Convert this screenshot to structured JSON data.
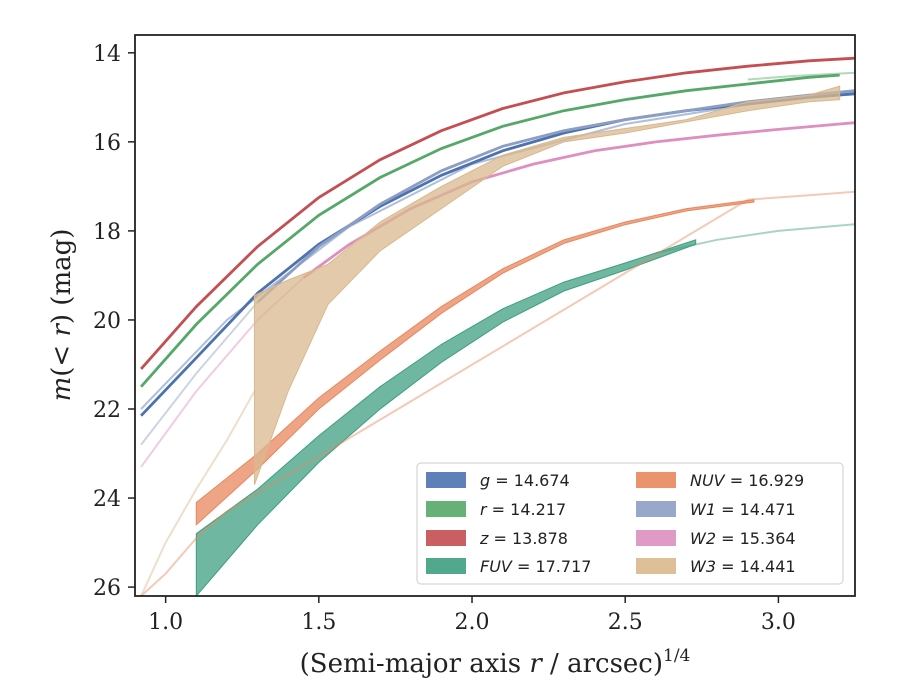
{
  "chart_data": {
    "type": "line",
    "xlabel": "(Semi-major axis r / arcsec)^{1/4}",
    "xlabel_parts": {
      "pre": "(Semi-major axis ",
      "var": "r",
      "post": " / arcsec)",
      "sup": "1/4"
    },
    "ylabel": "m(< r) (mag)",
    "ylabel_parts": {
      "m": "m",
      "open": "(",
      "lt": "< ",
      "r": "r",
      "close": ")",
      "unit": " (mag)"
    },
    "xlim": [
      0.9,
      3.25
    ],
    "ylim": [
      26.2,
      13.6
    ],
    "y_inverted": true,
    "xticks": [
      "1.0",
      "1.5",
      "2.0",
      "2.5",
      "3.0"
    ],
    "xtick_values": [
      1.0,
      1.5,
      2.0,
      2.5,
      3.0
    ],
    "yticks": [
      "14",
      "16",
      "18",
      "20",
      "22",
      "24",
      "26"
    ],
    "ytick_values": [
      14,
      16,
      18,
      20,
      22,
      24,
      26
    ],
    "grid": false,
    "legend_placement": "lower-right",
    "series": [
      {
        "key": "g",
        "name": "g = 14.674",
        "label_var": "g",
        "label_val": " = 14.674",
        "color": "#4c72b0",
        "faint_x": [
          0.92,
          1.2,
          1.6,
          2.0,
          2.5,
          3.0,
          3.25
        ],
        "faint_y": [
          22.0,
          20.0,
          17.9,
          16.5,
          15.6,
          15.05,
          14.9
        ],
        "solid_x": [
          0.92,
          1.1,
          1.3,
          1.5,
          1.7,
          1.9,
          2.1,
          2.3,
          2.5,
          2.7,
          2.9,
          3.1,
          3.25
        ],
        "solid_y": [
          22.15,
          20.85,
          19.4,
          18.3,
          17.45,
          16.75,
          16.2,
          15.8,
          15.5,
          15.3,
          15.15,
          15.0,
          14.92
        ],
        "band": []
      },
      {
        "key": "r",
        "name": "r = 14.217",
        "label_var": "r",
        "label_val": " = 14.217",
        "color": "#55a868",
        "faint_x": [
          2.9,
          3.05,
          3.25
        ],
        "faint_y": [
          14.6,
          14.52,
          14.45
        ],
        "solid_x": [
          0.92,
          1.1,
          1.3,
          1.5,
          1.7,
          1.9,
          2.1,
          2.3,
          2.5,
          2.7,
          2.9,
          3.1,
          3.2
        ],
        "solid_y": [
          21.5,
          20.1,
          18.75,
          17.65,
          16.8,
          16.15,
          15.65,
          15.3,
          15.05,
          14.85,
          14.7,
          14.55,
          14.5
        ],
        "band": []
      },
      {
        "key": "z",
        "name": "z = 13.878",
        "label_var": "z",
        "label_val": " = 13.878",
        "color": "#c44e52",
        "faint_x": [],
        "faint_y": [],
        "solid_x": [
          0.92,
          1.1,
          1.3,
          1.5,
          1.7,
          1.9,
          2.1,
          2.3,
          2.5,
          2.7,
          2.9,
          3.1,
          3.25
        ],
        "solid_y": [
          21.1,
          19.7,
          18.35,
          17.25,
          16.4,
          15.75,
          15.25,
          14.9,
          14.65,
          14.45,
          14.3,
          14.18,
          14.12
        ],
        "band": []
      },
      {
        "key": "FUV",
        "name": "FUV = 17.717",
        "label_var": "FUV",
        "label_val": " = 17.717",
        "color": "#3f9f80",
        "faint_x": [
          2.6,
          2.8,
          3.0,
          3.25
        ],
        "faint_y": [
          18.5,
          18.2,
          18.0,
          17.85
        ],
        "solid_x": [],
        "solid_y": [],
        "band_x": [
          1.1,
          1.3,
          1.5,
          1.7,
          1.9,
          2.1,
          2.3,
          2.5,
          2.73
        ],
        "band_lo": [
          24.8,
          23.8,
          22.6,
          21.5,
          20.55,
          19.75,
          19.15,
          18.72,
          18.2
        ],
        "band_hi": [
          26.2,
          24.6,
          23.2,
          22.0,
          20.95,
          20.05,
          19.35,
          18.88,
          18.3
        ]
      },
      {
        "key": "NUV",
        "name": "NUV = 16.929",
        "label_var": "NUV",
        "label_val": " = 16.929",
        "color": "#e8875d",
        "faint_x": [
          0.92,
          1.0,
          1.1,
          1.2,
          2.9,
          3.1,
          3.25
        ],
        "faint_y": [
          26.2,
          25.7,
          24.9,
          24.3,
          17.3,
          17.2,
          17.12
        ],
        "solid_x": [],
        "solid_y": [],
        "band_x": [
          1.1,
          1.3,
          1.5,
          1.7,
          1.9,
          2.1,
          2.3,
          2.5,
          2.7,
          2.92
        ],
        "band_lo": [
          24.1,
          23.0,
          21.75,
          20.7,
          19.7,
          18.85,
          18.2,
          17.8,
          17.5,
          17.3
        ],
        "band_hi": [
          24.6,
          23.35,
          22.0,
          20.9,
          19.85,
          18.95,
          18.28,
          17.86,
          17.55,
          17.35
        ]
      },
      {
        "key": "W1",
        "name": "W1 = 14.471",
        "label_var": "W1",
        "label_val": " = 14.471",
        "color": "#8c9ec4",
        "faint_x": [
          0.92,
          1.1,
          1.3
        ],
        "faint_y": [
          22.8,
          21.2,
          19.6
        ],
        "solid_x": [
          1.3,
          1.5,
          1.7,
          1.9,
          2.1,
          2.3,
          2.5,
          2.7,
          2.9,
          3.1,
          3.25
        ],
        "solid_y": [
          19.6,
          18.35,
          17.4,
          16.65,
          16.1,
          15.75,
          15.5,
          15.3,
          15.1,
          14.95,
          14.85
        ],
        "band": []
      },
      {
        "key": "W2",
        "name": "W2 = 15.364",
        "label_var": "W2",
        "label_val": " = 15.364",
        "color": "#dd8fc0",
        "faint_x": [
          0.92,
          1.1,
          1.3,
          1.45
        ],
        "faint_y": [
          23.3,
          21.6,
          20.0,
          19.05
        ],
        "solid_x": [
          1.45,
          1.6,
          1.8,
          2.0,
          2.2,
          2.4,
          2.6,
          2.8,
          3.0,
          3.2,
          3.25
        ],
        "solid_y": [
          19.05,
          18.3,
          17.5,
          16.9,
          16.5,
          16.2,
          16.0,
          15.85,
          15.72,
          15.6,
          15.57
        ],
        "band": []
      },
      {
        "key": "W3",
        "name": "W3 = 14.441",
        "label_var": "W3",
        "label_val": " = 14.441",
        "color": "#d9b88d",
        "faint_x": [
          0.92,
          1.0,
          1.1,
          1.2,
          1.29
        ],
        "faint_y": [
          26.2,
          25.0,
          23.8,
          22.7,
          21.6
        ],
        "solid_x": [],
        "solid_y": [],
        "band_x": [
          1.29,
          1.4,
          1.53,
          1.7,
          1.9,
          2.1,
          2.3,
          2.5,
          2.7,
          2.9,
          3.1,
          3.2
        ],
        "band_lo": [
          19.45,
          19.1,
          18.75,
          17.8,
          17.0,
          16.3,
          15.9,
          15.7,
          15.5,
          15.1,
          14.95,
          14.75
        ],
        "band_hi": [
          23.7,
          21.6,
          19.65,
          18.45,
          17.5,
          16.55,
          16.0,
          15.8,
          15.55,
          15.3,
          15.1,
          15.05
        ]
      }
    ]
  }
}
